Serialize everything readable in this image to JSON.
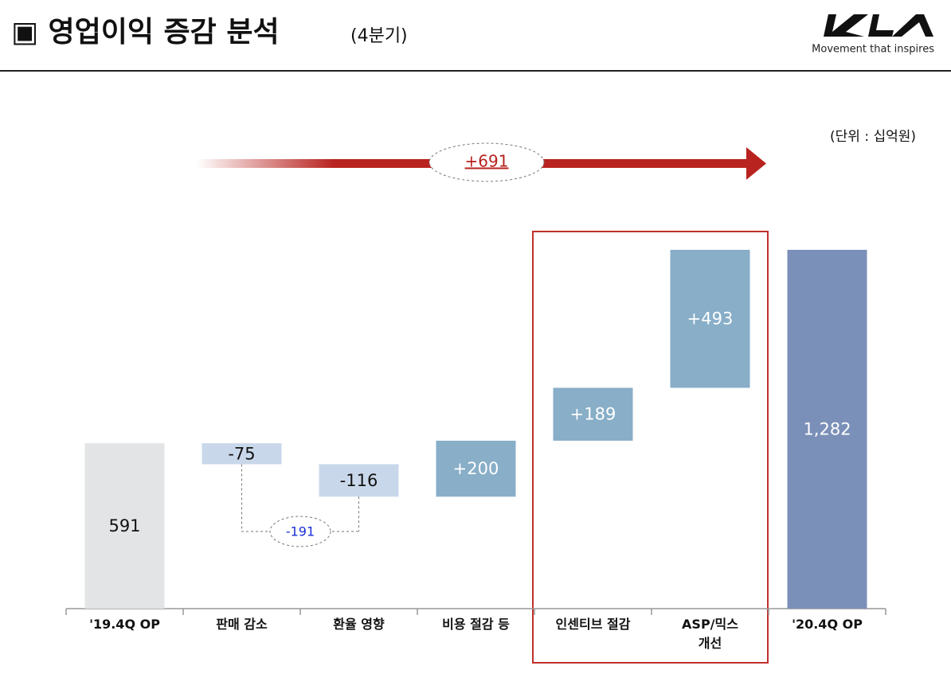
{
  "header": {
    "title": "▣ 영업이익 증감 분석",
    "subtitle": "(4분기)",
    "logo_tagline": "Movement that inspires"
  },
  "chart_data": {
    "type": "waterfall",
    "unit_label": "(단위 : 십억원)",
    "categories": [
      "'19.4Q OP",
      "판매 감소",
      "환율 영향",
      "비용 절감 등",
      "인센티브 절감",
      "ASP/믹스\n개선",
      "'20.4Q OP"
    ],
    "values": [
      591,
      -75,
      -116,
      200,
      189,
      493,
      1282
    ],
    "value_labels": [
      "591",
      "-75",
      "-116",
      "+200",
      "+189",
      "+493",
      "1,282"
    ],
    "colors": [
      "#e3e4e6",
      "#c9d7ea",
      "#c9d7ea",
      "#88aec8",
      "#88aec8",
      "#88aec8",
      "#7b90b8"
    ],
    "annotations": [
      {
        "text": "+691"
      },
      {
        "text": "-191"
      }
    ]
  }
}
